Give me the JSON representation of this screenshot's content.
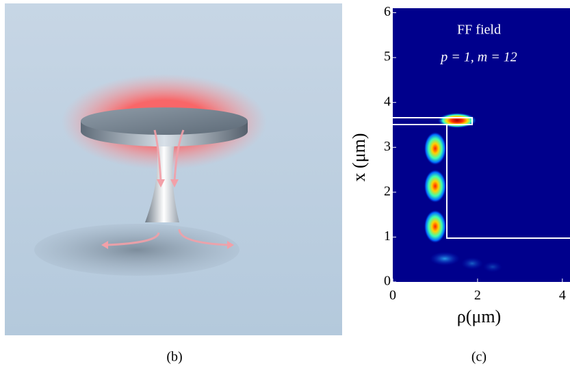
{
  "captions": [
    "(b)",
    "(c)"
  ],
  "chart_data": {
    "type": "heatmap",
    "title": "FF field",
    "annotation": "p = 1, m = 12",
    "x_label": "ρ(μm)",
    "y_label": "x (μm)",
    "xlim": [
      0,
      4.18
    ],
    "ylim": [
      0,
      6.1
    ],
    "xticks": [
      0,
      2,
      4
    ],
    "yticks": [
      0,
      1,
      2,
      3,
      4,
      5,
      6
    ]
  }
}
